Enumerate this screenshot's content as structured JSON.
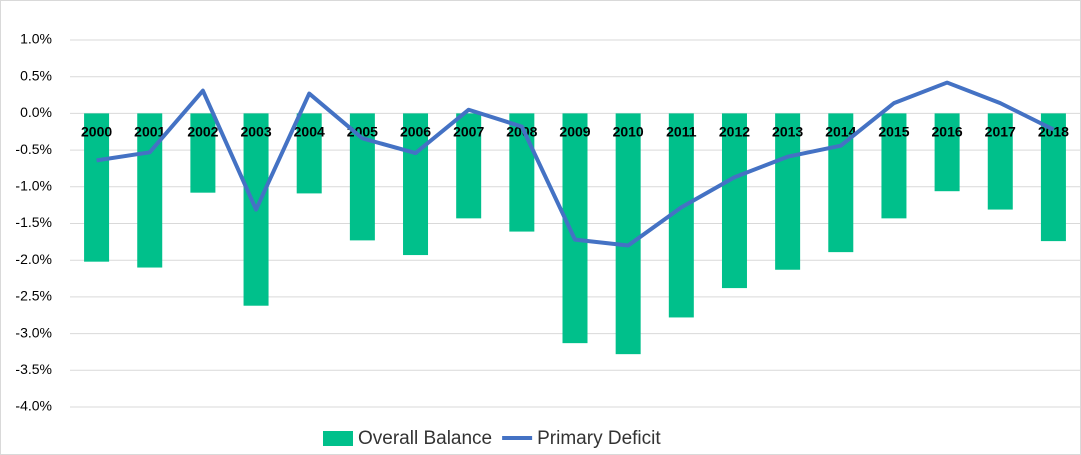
{
  "chart_data": {
    "type": "bar-line",
    "categories": [
      "2000",
      "2001",
      "2002",
      "2003",
      "2004",
      "2005",
      "2006",
      "2007",
      "2008",
      "2009",
      "2010",
      "2011",
      "2012",
      "2013",
      "2014",
      "2015",
      "2016",
      "2017",
      "2018"
    ],
    "series": [
      {
        "name": "Overall Balance",
        "type": "bar",
        "color": "#00c08b",
        "values": [
          -2.02,
          -2.1,
          -1.08,
          -2.62,
          -1.09,
          -1.73,
          -1.93,
          -1.43,
          -1.61,
          -3.13,
          -3.28,
          -2.78,
          -2.38,
          -2.13,
          -1.89,
          -1.43,
          -1.06,
          -1.31,
          -1.74
        ]
      },
      {
        "name": "Primary Deficit",
        "type": "line",
        "color": "#4472c4",
        "values": [
          -0.64,
          -0.53,
          0.31,
          -1.31,
          0.27,
          -0.34,
          -0.54,
          0.05,
          -0.18,
          -1.72,
          -1.8,
          -1.28,
          -0.87,
          -0.59,
          -0.44,
          0.14,
          0.42,
          0.14,
          -0.22
        ]
      }
    ],
    "ylim": [
      -4,
      1
    ],
    "yticks": [
      {
        "value": -4,
        "label": "-4.0%"
      },
      {
        "value": -3.5,
        "label": "-3.5%"
      },
      {
        "value": -3,
        "label": "-3.0%"
      },
      {
        "value": -2.5,
        "label": "-2.5%"
      },
      {
        "value": -2,
        "label": "-2.0%"
      },
      {
        "value": -1.5,
        "label": "-1.5%"
      },
      {
        "value": -1,
        "label": "-1.0%"
      },
      {
        "value": -0.5,
        "label": "-0.5%"
      },
      {
        "value": 0,
        "label": "0.0%"
      },
      {
        "value": 0.5,
        "label": "0.5%"
      },
      {
        "value": 1,
        "label": "1.0%"
      }
    ],
    "grid": true,
    "legend": "bottom"
  }
}
